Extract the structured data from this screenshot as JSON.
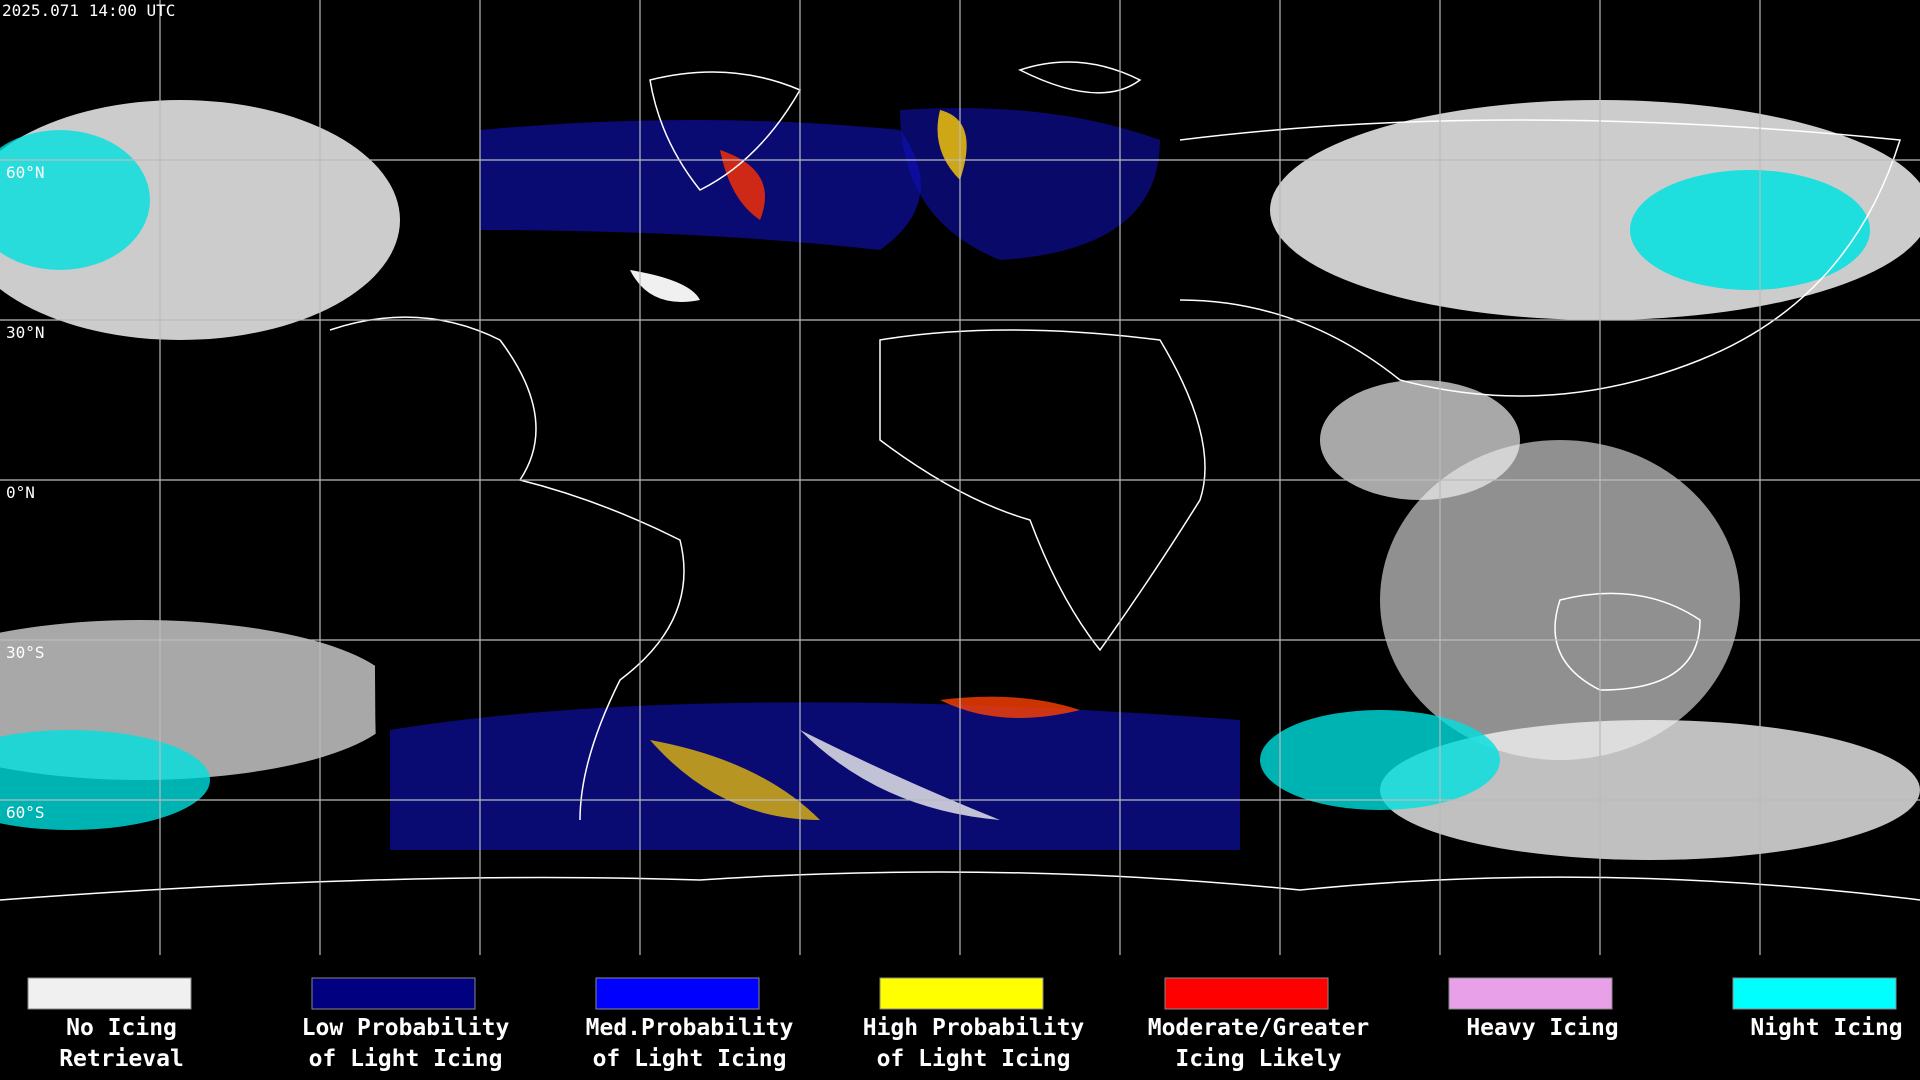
{
  "header": {
    "timestamp": "2025.071 14:00 UTC"
  },
  "latitude_labels": [
    "60°N",
    "30°N",
    "0°N",
    "30°S",
    "60°S"
  ],
  "legend": [
    {
      "lines": [
        "No Icing",
        "Retrieval"
      ],
      "color": "#f0f0f0"
    },
    {
      "lines": [
        "Low Probability",
        "of Light Icing"
      ],
      "color": "#000080"
    },
    {
      "lines": [
        "Med.Probability",
        "of Light Icing"
      ],
      "color": "#0000ff"
    },
    {
      "lines": [
        "High Probability",
        "of Light Icing"
      ],
      "color": "#ffff00"
    },
    {
      "lines": [
        "Moderate/Greater",
        "Icing Likely"
      ],
      "color": "#ff0000"
    },
    {
      "lines": [
        "Heavy Icing"
      ],
      "color": "#e8a0e8"
    },
    {
      "lines": [
        "Night Icing"
      ],
      "color": "#00ffff"
    }
  ]
}
